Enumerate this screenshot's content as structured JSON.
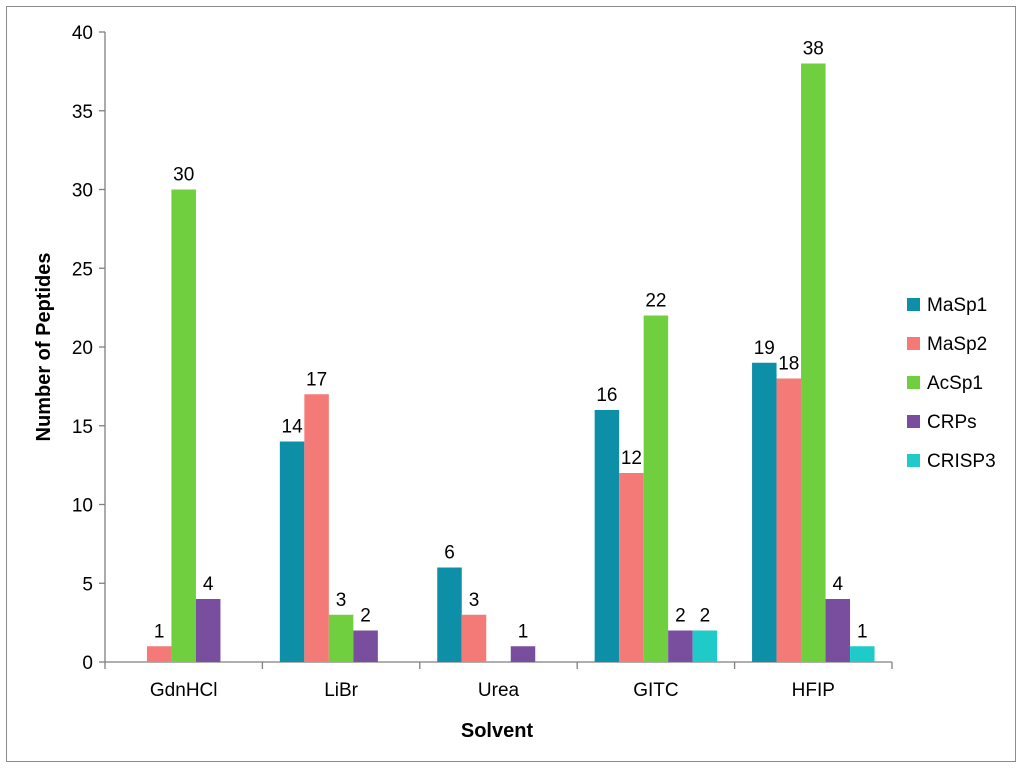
{
  "chart_data": {
    "type": "bar",
    "title": "",
    "xlabel": "Solvent",
    "ylabel": "Number of Peptides",
    "ylim": [
      0,
      40
    ],
    "yticks": [
      0,
      5,
      10,
      15,
      20,
      25,
      30,
      35,
      40
    ],
    "grid": false,
    "legend_position": "right",
    "categories": [
      "GdnHCl",
      "LiBr",
      "Urea",
      "GITC",
      "HFIP"
    ],
    "series": [
      {
        "name": "MaSp1",
        "color": "#0E8FA8",
        "values": [
          null,
          14,
          6,
          16,
          19
        ]
      },
      {
        "name": "MaSp2",
        "color": "#F47A78",
        "values": [
          1,
          17,
          3,
          12,
          18
        ]
      },
      {
        "name": "AcSp1",
        "color": "#6FCF3F",
        "values": [
          30,
          3,
          null,
          22,
          38
        ]
      },
      {
        "name": "CRPs",
        "color": "#7A4E9E",
        "values": [
          4,
          2,
          1,
          2,
          4
        ]
      },
      {
        "name": "CRISP3",
        "color": "#1FCBC8",
        "values": [
          null,
          null,
          null,
          2,
          1
        ]
      }
    ]
  }
}
